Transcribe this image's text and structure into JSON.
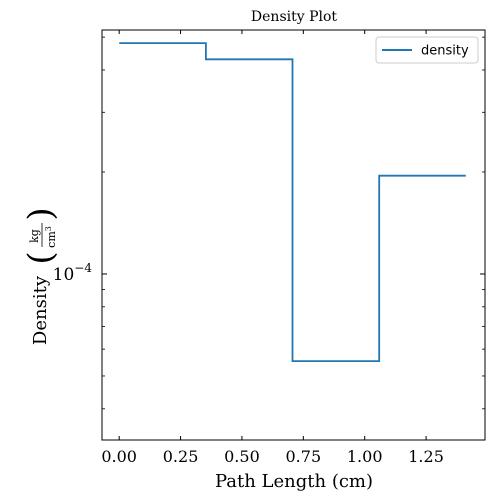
{
  "chart_data": {
    "type": "line",
    "title": "Density Plot",
    "xlabel": "Path Length  (cm)",
    "ylabel_text": "Density",
    "ylabel_unit_num": "kg",
    "ylabel_unit_den": "cm",
    "ylabel_unit_den_exp": "3",
    "xlim": [
      -0.07,
      1.49
    ],
    "ylim_log10": [
      -4.49,
      -3.28
    ],
    "y_scale": "log",
    "x_ticks": [
      0.0,
      0.25,
      0.5,
      0.75,
      1.0,
      1.25
    ],
    "x_tick_labels": [
      "0.00",
      "0.25",
      "0.50",
      "0.75",
      "1.00",
      "1.25"
    ],
    "y_ticks_log10": [
      -4
    ],
    "y_tick_label_base": "10",
    "y_tick_label_exp": "−4",
    "legend": {
      "position": "top-right",
      "entries": [
        "density"
      ]
    },
    "grid": false,
    "series": [
      {
        "name": "density",
        "color": "#1f77b4",
        "x": [
          0.0,
          0.353,
          0.353,
          0.706,
          0.706,
          1.059,
          1.059,
          1.412
        ],
        "y": [
          0.00048,
          0.00048,
          0.00043,
          0.00043,
          5.53e-05,
          5.53e-05,
          0.000195,
          0.000195
        ]
      }
    ]
  }
}
